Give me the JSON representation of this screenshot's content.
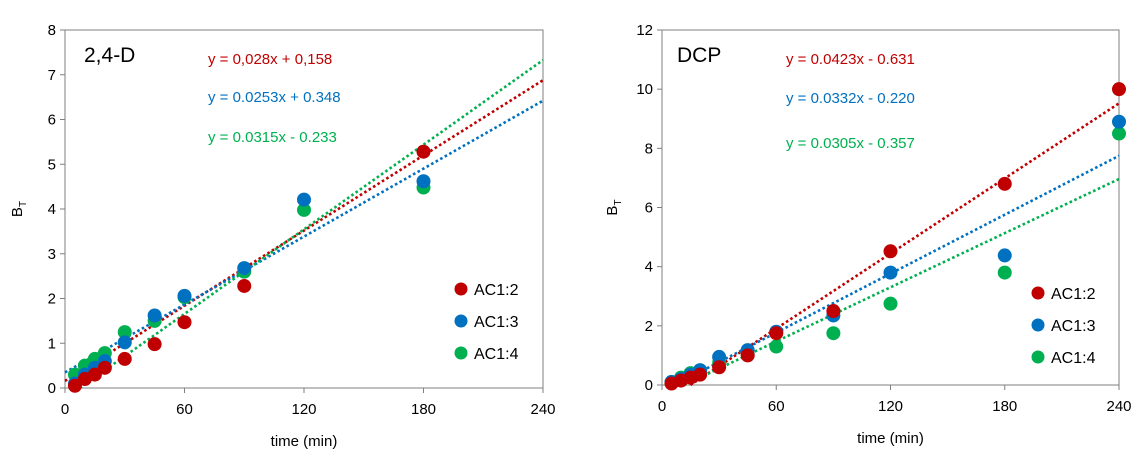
{
  "chart_data": [
    {
      "type": "scatter",
      "panel_label": "2,4-D",
      "xlabel": "time (min)",
      "ylabel": "B",
      "ylabel_sub": "T",
      "xlim": [
        0,
        240
      ],
      "ylim": [
        0,
        8
      ],
      "xticks": [
        "0",
        "60",
        "120",
        "180",
        "240"
      ],
      "yticks": [
        "0",
        "1",
        "2",
        "3",
        "4",
        "5",
        "6",
        "7",
        "8"
      ],
      "grid": false,
      "legend": "bottom-right",
      "series": [
        {
          "name": "AC1:2",
          "color": "#C00000",
          "x": [
            5,
            10,
            15,
            20,
            30,
            45,
            60,
            90,
            180
          ],
          "y": [
            0.05,
            0.2,
            0.3,
            0.45,
            0.65,
            0.98,
            1.47,
            2.28,
            5.28
          ],
          "trendline": {
            "slope": 0.028,
            "intercept": 0.158
          },
          "equation": "y = 0,028x + 0,158"
        },
        {
          "name": "AC1:3",
          "color": "#0070C0",
          "x": [
            5,
            10,
            15,
            20,
            30,
            45,
            60,
            90,
            120,
            180
          ],
          "y": [
            0.1,
            0.3,
            0.45,
            0.6,
            1.02,
            1.62,
            2.06,
            2.68,
            4.21,
            4.62
          ],
          "trendline": {
            "slope": 0.0253,
            "intercept": 0.348
          },
          "equation": "y = 0.0253x + 0.348"
        },
        {
          "name": "AC1:4",
          "color": "#00B050",
          "x": [
            5,
            10,
            15,
            20,
            30,
            45,
            60,
            90,
            120,
            180
          ],
          "y": [
            0.3,
            0.5,
            0.65,
            0.78,
            1.25,
            1.5,
            2.03,
            2.6,
            3.98,
            4.48
          ],
          "trendline": {
            "slope": 0.0315,
            "intercept": -0.233
          },
          "equation": "y = 0.0315x - 0.233"
        }
      ]
    },
    {
      "type": "scatter",
      "panel_label": "DCP",
      "xlabel": "time (min)",
      "ylabel": "B",
      "ylabel_sub": "T",
      "xlim": [
        0,
        240
      ],
      "ylim": [
        0,
        12
      ],
      "xticks": [
        "0",
        "60",
        "120",
        "180",
        "240"
      ],
      "yticks": [
        "0",
        "2",
        "4",
        "6",
        "8",
        "10",
        "12"
      ],
      "grid": false,
      "legend": "bottom-right",
      "series": [
        {
          "name": "AC1:2",
          "color": "#C00000",
          "x": [
            5,
            10,
            15,
            20,
            30,
            45,
            60,
            90,
            120,
            180,
            240
          ],
          "y": [
            0.05,
            0.15,
            0.25,
            0.35,
            0.6,
            1.0,
            1.75,
            2.5,
            4.52,
            6.8,
            10.0
          ],
          "trendline": {
            "slope": 0.0423,
            "intercept": -0.631
          },
          "equation": "y = 0.0423x - 0.631"
        },
        {
          "name": "AC1:3",
          "color": "#0070C0",
          "x": [
            5,
            10,
            15,
            20,
            30,
            45,
            60,
            90,
            120,
            180,
            240
          ],
          "y": [
            0.1,
            0.2,
            0.35,
            0.5,
            0.95,
            1.18,
            1.8,
            2.35,
            3.8,
            4.38,
            8.9
          ],
          "trendline": {
            "slope": 0.0332,
            "intercept": -0.22
          },
          "equation": "y = 0.0332x - 0.220"
        },
        {
          "name": "AC1:4",
          "color": "#00B050",
          "x": [
            5,
            10,
            15,
            20,
            30,
            45,
            60,
            90,
            120,
            180,
            240
          ],
          "y": [
            0.1,
            0.25,
            0.4,
            0.5,
            0.75,
            1.05,
            1.3,
            1.75,
            2.75,
            3.8,
            8.5
          ],
          "trendline": {
            "slope": 0.0305,
            "intercept": -0.357
          },
          "equation": "y = 0.0305x - 0.357"
        }
      ]
    }
  ]
}
